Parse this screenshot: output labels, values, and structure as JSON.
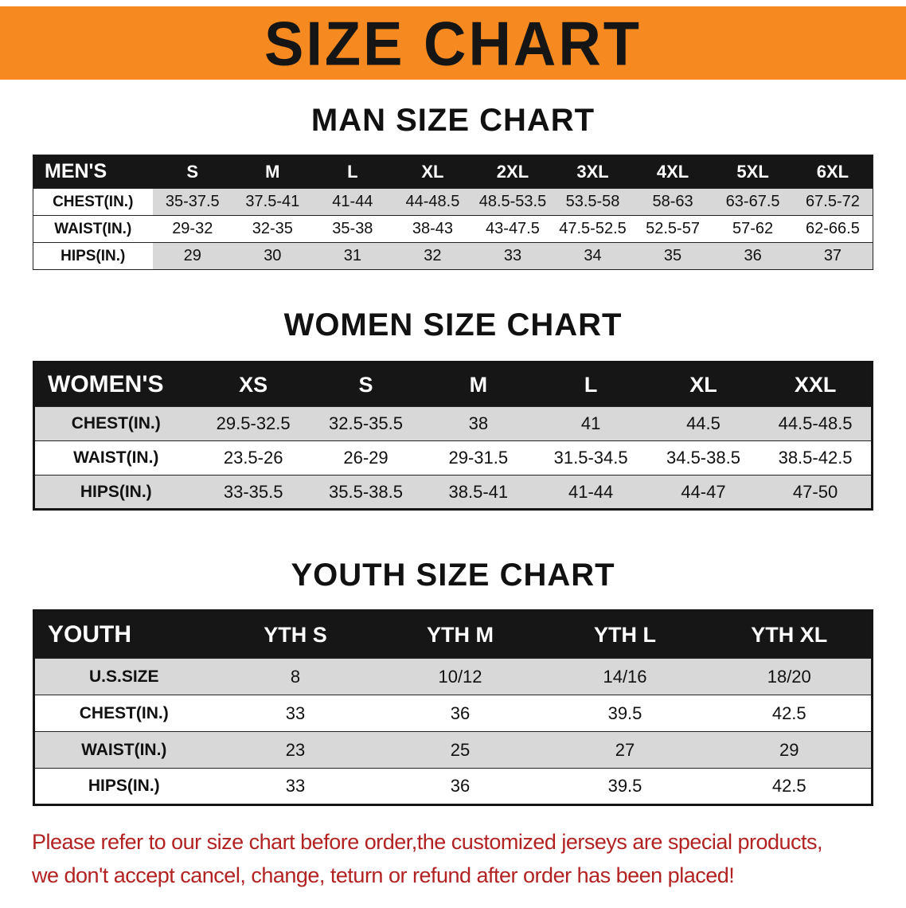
{
  "banner": {
    "title": "SIZE CHART"
  },
  "colors": {
    "banner_orange": "#f6891f",
    "table_header_black": "#161616",
    "row_shade_gray": "#d8d8d8",
    "disclaimer_red": "#b22222"
  },
  "chart_data": [
    {
      "type": "table",
      "title": "MAN SIZE CHART",
      "columns": [
        "MEN'S",
        "S",
        "M",
        "L",
        "XL",
        "2XL",
        "3XL",
        "4XL",
        "5XL",
        "6XL"
      ],
      "rows": [
        [
          "CHEST(IN.)",
          "35-37.5",
          "37.5-41",
          "41-44",
          "44-48.5",
          "48.5-53.5",
          "53.5-58",
          "58-63",
          "63-67.5",
          "67.5-72"
        ],
        [
          "WAIST(IN.)",
          "29-32",
          "32-35",
          "35-38",
          "38-43",
          "43-47.5",
          "47.5-52.5",
          "52.5-57",
          "57-62",
          "62-66.5"
        ],
        [
          "HIPS(IN.)",
          "29",
          "30",
          "31",
          "32",
          "33",
          "34",
          "35",
          "36",
          "37"
        ]
      ]
    },
    {
      "type": "table",
      "title": "WOMEN SIZE CHART",
      "columns": [
        "WOMEN'S",
        "XS",
        "S",
        "M",
        "L",
        "XL",
        "XXL"
      ],
      "rows": [
        [
          "CHEST(IN.)",
          "29.5-32.5",
          "32.5-35.5",
          "38",
          "41",
          "44.5",
          "44.5-48.5"
        ],
        [
          "WAIST(IN.)",
          "23.5-26",
          "26-29",
          "29-31.5",
          "31.5-34.5",
          "34.5-38.5",
          "38.5-42.5"
        ],
        [
          "HIPS(IN.)",
          "33-35.5",
          "35.5-38.5",
          "38.5-41",
          "41-44",
          "44-47",
          "47-50"
        ]
      ]
    },
    {
      "type": "table",
      "title": "YOUTH SIZE CHART",
      "columns": [
        "YOUTH",
        "YTH S",
        "YTH M",
        "YTH L",
        "YTH XL"
      ],
      "rows": [
        [
          "U.S.SIZE",
          "8",
          "10/12",
          "14/16",
          "18/20"
        ],
        [
          "CHEST(IN.)",
          "33",
          "36",
          "39.5",
          "42.5"
        ],
        [
          "WAIST(IN.)",
          "23",
          "25",
          "27",
          "29"
        ],
        [
          "HIPS(IN.)",
          "33",
          "36",
          "39.5",
          "42.5"
        ]
      ]
    }
  ],
  "footer": {
    "line1": "Please refer to our size chart before order,the customized jerseys are special products,",
    "line2": "we don't accept cancel, change, teturn or refund after order has been placed!"
  }
}
